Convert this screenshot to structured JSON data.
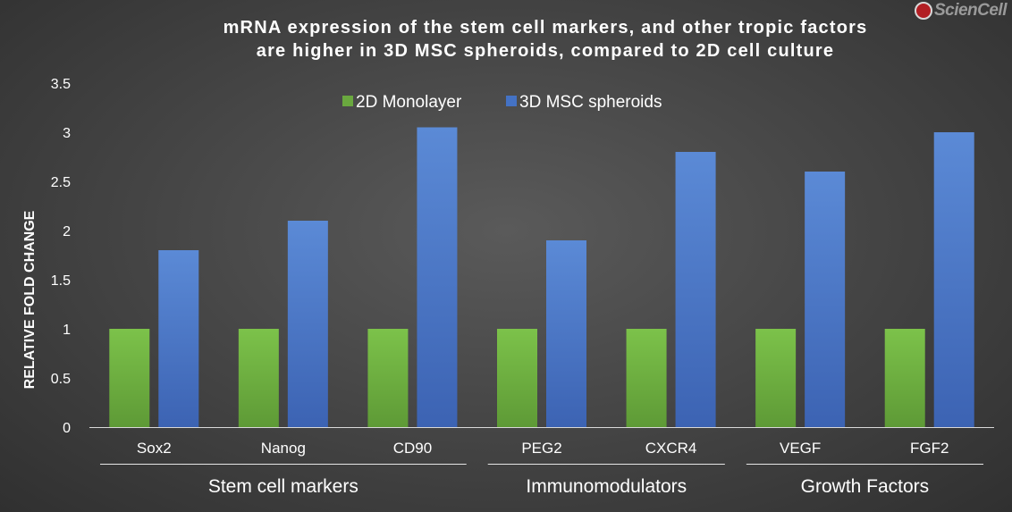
{
  "title_line1": "mRNA expression of the stem cell markers, and other tropic factors",
  "title_line2": "are higher in 3D MSC spheroids, compared to 2D cell culture",
  "logo_text": "ScienCell",
  "chart_data": {
    "type": "bar",
    "title": "mRNA expression of the stem cell markers, and other tropic factors are higher in 3D MSC spheroids, compared to 2D cell culture",
    "xlabel": "",
    "ylabel": "RELATIVE FOLD CHANGE",
    "ylim": [
      0,
      3.5
    ],
    "yticks": [
      "0",
      "0.5",
      "1",
      "1.5",
      "2",
      "2.5",
      "3",
      "3.5"
    ],
    "grid": false,
    "legend_position": "top-center",
    "categories": [
      "Sox2",
      "Nanog",
      "CD90",
      "PEG2",
      "CXCR4",
      "VEGF",
      "FGF2"
    ],
    "groups": [
      {
        "label": "Stem cell markers",
        "categories": [
          "Sox2",
          "Nanog",
          "CD90"
        ]
      },
      {
        "label": "Immunomodulators",
        "categories": [
          "PEG2",
          "CXCR4"
        ]
      },
      {
        "label": "Growth Factors",
        "categories": [
          "VEGF",
          "FGF2"
        ]
      }
    ],
    "series": [
      {
        "name": "2D Monolayer",
        "color": "#6aa83f",
        "values": [
          1,
          1,
          1,
          1,
          1,
          1,
          1
        ]
      },
      {
        "name": "3D MSC spheroids",
        "color": "#4472c4",
        "values": [
          1.8,
          2.1,
          3.05,
          1.9,
          2.8,
          2.6,
          3.0
        ]
      }
    ]
  }
}
